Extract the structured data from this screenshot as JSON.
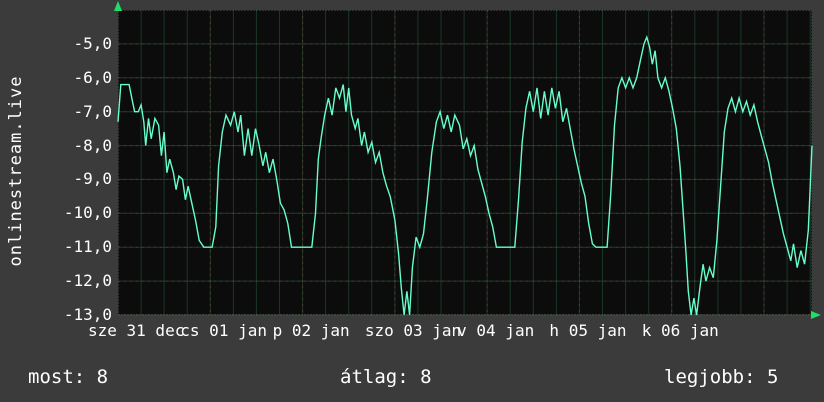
{
  "site_label": "onlinestream.live",
  "footer": {
    "most": {
      "label": "most:",
      "value": "8"
    },
    "atlag": {
      "label": "átlag:",
      "value": "8"
    },
    "legjobb": {
      "label": "legjobb:",
      "value": "5"
    }
  },
  "colors": {
    "page_bg": "#3b3b3b",
    "plot_bg": "#0c0c0c",
    "line": "#66ffcc",
    "grid_minor": "#2d6b46",
    "grid_major_red": "#aa4444",
    "frame": "#9a9a9a",
    "arrow": "#22dd66",
    "text": "#ffffff"
  },
  "chart_data": {
    "type": "line",
    "title": "onlinestream.live",
    "ylabel": "onlinestream.live",
    "xlabel": "",
    "legend_position": "none",
    "grid": true,
    "ylim": [
      -13,
      -4
    ],
    "xlim_days": [
      0,
      7.52
    ],
    "yticks": [
      {
        "value": -5,
        "label": "-5,0"
      },
      {
        "value": -6,
        "label": "-6,0"
      },
      {
        "value": -7,
        "label": "-7,0"
      },
      {
        "value": -8,
        "label": "-8,0"
      },
      {
        "value": -9,
        "label": "-9,0"
      },
      {
        "value": -10,
        "label": "-10,0"
      },
      {
        "value": -11,
        "label": "-11,0"
      },
      {
        "value": -12,
        "label": "-12,0"
      },
      {
        "value": -13,
        "label": "-13,0"
      }
    ],
    "xticks": [
      {
        "day": 0,
        "label": "sze 31 dec"
      },
      {
        "day": 1,
        "label": "cs 01 jan"
      },
      {
        "day": 2,
        "label": "p 02 jan"
      },
      {
        "day": 3,
        "label": "szo 03 jan"
      },
      {
        "day": 4,
        "label": "v 04 jan"
      },
      {
        "day": 5,
        "label": "h 05 jan"
      },
      {
        "day": 6,
        "label": "k 06 jan"
      }
    ],
    "footer_stats": {
      "most": 8,
      "atlag": 8,
      "legjobb": 5
    },
    "series": [
      {
        "name": "value",
        "color": "#66ffcc",
        "points": [
          [
            0.0,
            -7.3
          ],
          [
            0.03,
            -6.2
          ],
          [
            0.12,
            -6.2
          ],
          [
            0.15,
            -6.6
          ],
          [
            0.18,
            -7.0
          ],
          [
            0.22,
            -7.0
          ],
          [
            0.25,
            -6.8
          ],
          [
            0.28,
            -7.3
          ],
          [
            0.3,
            -8.0
          ],
          [
            0.33,
            -7.2
          ],
          [
            0.36,
            -7.8
          ],
          [
            0.4,
            -7.2
          ],
          [
            0.44,
            -7.4
          ],
          [
            0.47,
            -8.3
          ],
          [
            0.5,
            -7.6
          ],
          [
            0.53,
            -8.8
          ],
          [
            0.56,
            -8.4
          ],
          [
            0.6,
            -8.8
          ],
          [
            0.63,
            -9.3
          ],
          [
            0.66,
            -8.9
          ],
          [
            0.7,
            -9.0
          ],
          [
            0.73,
            -9.6
          ],
          [
            0.76,
            -9.2
          ],
          [
            0.8,
            -9.7
          ],
          [
            0.84,
            -10.2
          ],
          [
            0.88,
            -10.8
          ],
          [
            0.93,
            -11.0
          ],
          [
            1.02,
            -11.0
          ],
          [
            1.06,
            -10.4
          ],
          [
            1.09,
            -8.6
          ],
          [
            1.13,
            -7.6
          ],
          [
            1.17,
            -7.1
          ],
          [
            1.22,
            -7.4
          ],
          [
            1.26,
            -7.0
          ],
          [
            1.3,
            -7.6
          ],
          [
            1.33,
            -7.1
          ],
          [
            1.37,
            -8.3
          ],
          [
            1.41,
            -7.5
          ],
          [
            1.45,
            -8.3
          ],
          [
            1.49,
            -7.5
          ],
          [
            1.53,
            -8.0
          ],
          [
            1.57,
            -8.6
          ],
          [
            1.6,
            -8.2
          ],
          [
            1.64,
            -8.8
          ],
          [
            1.68,
            -8.4
          ],
          [
            1.72,
            -9.0
          ],
          [
            1.76,
            -9.7
          ],
          [
            1.8,
            -9.9
          ],
          [
            1.84,
            -10.3
          ],
          [
            1.88,
            -11.0
          ],
          [
            2.1,
            -11.0
          ],
          [
            2.14,
            -10.0
          ],
          [
            2.17,
            -8.4
          ],
          [
            2.2,
            -7.8
          ],
          [
            2.24,
            -7.1
          ],
          [
            2.28,
            -6.6
          ],
          [
            2.32,
            -7.1
          ],
          [
            2.36,
            -6.3
          ],
          [
            2.4,
            -6.6
          ],
          [
            2.44,
            -6.2
          ],
          [
            2.47,
            -7.0
          ],
          [
            2.5,
            -6.3
          ],
          [
            2.53,
            -7.1
          ],
          [
            2.57,
            -7.5
          ],
          [
            2.6,
            -7.2
          ],
          [
            2.64,
            -8.0
          ],
          [
            2.67,
            -7.6
          ],
          [
            2.71,
            -8.2
          ],
          [
            2.75,
            -7.9
          ],
          [
            2.79,
            -8.5
          ],
          [
            2.83,
            -8.2
          ],
          [
            2.87,
            -8.8
          ],
          [
            2.91,
            -9.2
          ],
          [
            2.95,
            -9.5
          ],
          [
            3.0,
            -10.2
          ],
          [
            3.04,
            -11.2
          ],
          [
            3.07,
            -12.2
          ],
          [
            3.1,
            -13.0
          ],
          [
            3.13,
            -12.3
          ],
          [
            3.16,
            -13.0
          ],
          [
            3.19,
            -11.6
          ],
          [
            3.23,
            -10.7
          ],
          [
            3.27,
            -11.0
          ],
          [
            3.31,
            -10.6
          ],
          [
            3.35,
            -9.6
          ],
          [
            3.4,
            -8.2
          ],
          [
            3.45,
            -7.3
          ],
          [
            3.49,
            -7.0
          ],
          [
            3.53,
            -7.5
          ],
          [
            3.57,
            -7.1
          ],
          [
            3.61,
            -7.6
          ],
          [
            3.65,
            -7.1
          ],
          [
            3.7,
            -7.4
          ],
          [
            3.74,
            -8.1
          ],
          [
            3.78,
            -7.8
          ],
          [
            3.82,
            -8.3
          ],
          [
            3.86,
            -8.0
          ],
          [
            3.9,
            -8.7
          ],
          [
            3.94,
            -9.1
          ],
          [
            3.98,
            -9.5
          ],
          [
            4.02,
            -10.0
          ],
          [
            4.06,
            -10.4
          ],
          [
            4.1,
            -11.0
          ],
          [
            4.3,
            -11.0
          ],
          [
            4.34,
            -9.6
          ],
          [
            4.38,
            -7.9
          ],
          [
            4.42,
            -6.9
          ],
          [
            4.46,
            -6.4
          ],
          [
            4.5,
            -7.0
          ],
          [
            4.54,
            -6.3
          ],
          [
            4.58,
            -7.2
          ],
          [
            4.62,
            -6.4
          ],
          [
            4.66,
            -7.1
          ],
          [
            4.7,
            -6.3
          ],
          [
            4.74,
            -6.9
          ],
          [
            4.78,
            -6.4
          ],
          [
            4.82,
            -7.3
          ],
          [
            4.86,
            -6.9
          ],
          [
            4.9,
            -7.5
          ],
          [
            4.94,
            -8.1
          ],
          [
            4.98,
            -8.6
          ],
          [
            5.02,
            -9.1
          ],
          [
            5.06,
            -9.5
          ],
          [
            5.1,
            -10.3
          ],
          [
            5.14,
            -10.9
          ],
          [
            5.18,
            -11.0
          ],
          [
            5.3,
            -11.0
          ],
          [
            5.34,
            -9.4
          ],
          [
            5.38,
            -7.4
          ],
          [
            5.42,
            -6.3
          ],
          [
            5.46,
            -6.0
          ],
          [
            5.5,
            -6.3
          ],
          [
            5.54,
            -6.0
          ],
          [
            5.58,
            -6.3
          ],
          [
            5.62,
            -6.0
          ],
          [
            5.66,
            -5.5
          ],
          [
            5.7,
            -5.0
          ],
          [
            5.73,
            -4.8
          ],
          [
            5.76,
            -5.1
          ],
          [
            5.79,
            -5.6
          ],
          [
            5.82,
            -5.2
          ],
          [
            5.85,
            -6.0
          ],
          [
            5.89,
            -6.3
          ],
          [
            5.93,
            -6.0
          ],
          [
            5.97,
            -6.4
          ],
          [
            6.01,
            -6.9
          ],
          [
            6.05,
            -7.5
          ],
          [
            6.09,
            -8.6
          ],
          [
            6.12,
            -9.8
          ],
          [
            6.15,
            -11.0
          ],
          [
            6.18,
            -12.3
          ],
          [
            6.21,
            -13.0
          ],
          [
            6.24,
            -12.5
          ],
          [
            6.27,
            -13.0
          ],
          [
            6.31,
            -12.1
          ],
          [
            6.34,
            -11.5
          ],
          [
            6.37,
            -12.0
          ],
          [
            6.41,
            -11.6
          ],
          [
            6.45,
            -11.9
          ],
          [
            6.49,
            -10.8
          ],
          [
            6.53,
            -9.2
          ],
          [
            6.57,
            -7.6
          ],
          [
            6.61,
            -6.9
          ],
          [
            6.65,
            -6.6
          ],
          [
            6.69,
            -7.0
          ],
          [
            6.73,
            -6.6
          ],
          [
            6.77,
            -7.0
          ],
          [
            6.81,
            -6.7
          ],
          [
            6.85,
            -7.1
          ],
          [
            6.89,
            -6.8
          ],
          [
            6.93,
            -7.3
          ],
          [
            6.97,
            -7.7
          ],
          [
            7.01,
            -8.1
          ],
          [
            7.05,
            -8.5
          ],
          [
            7.09,
            -9.1
          ],
          [
            7.13,
            -9.6
          ],
          [
            7.17,
            -10.1
          ],
          [
            7.21,
            -10.6
          ],
          [
            7.25,
            -11.0
          ],
          [
            7.29,
            -11.4
          ],
          [
            7.32,
            -10.9
          ],
          [
            7.36,
            -11.6
          ],
          [
            7.4,
            -11.1
          ],
          [
            7.44,
            -11.5
          ],
          [
            7.48,
            -10.5
          ],
          [
            7.52,
            -8.0
          ]
        ]
      }
    ]
  }
}
